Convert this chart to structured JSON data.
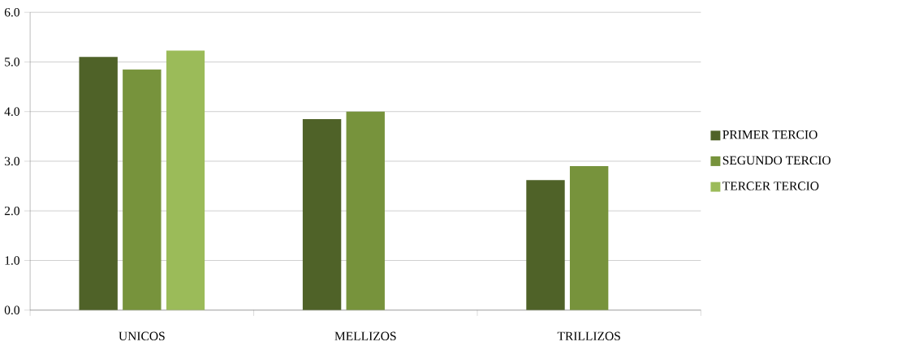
{
  "chart_data": {
    "type": "bar",
    "categories": [
      "UNICOS",
      "MELLIZOS",
      "TRILLIZOS"
    ],
    "series": [
      {
        "name": "PRIMER TERCIO",
        "color": "#4f6228",
        "values": [
          5.1,
          3.85,
          2.62
        ]
      },
      {
        "name": "SEGUNDO TERCIO",
        "color": "#77933c",
        "values": [
          4.85,
          4.0,
          2.9
        ]
      },
      {
        "name": "TERCER TERCIO",
        "color": "#9bbb59",
        "values": [
          5.23,
          null,
          null
        ]
      }
    ],
    "ylim": [
      0,
      6
    ],
    "yticks": [
      {
        "value": 0,
        "label": "0.0"
      },
      {
        "value": 1,
        "label": "1.0"
      },
      {
        "value": 2,
        "label": "2.0"
      },
      {
        "value": 3,
        "label": "3.0"
      },
      {
        "value": 4,
        "label": "4.0"
      },
      {
        "value": 5,
        "label": "5.0"
      },
      {
        "value": 6,
        "label": "6.0"
      }
    ],
    "grid": "y",
    "legend": "right"
  }
}
